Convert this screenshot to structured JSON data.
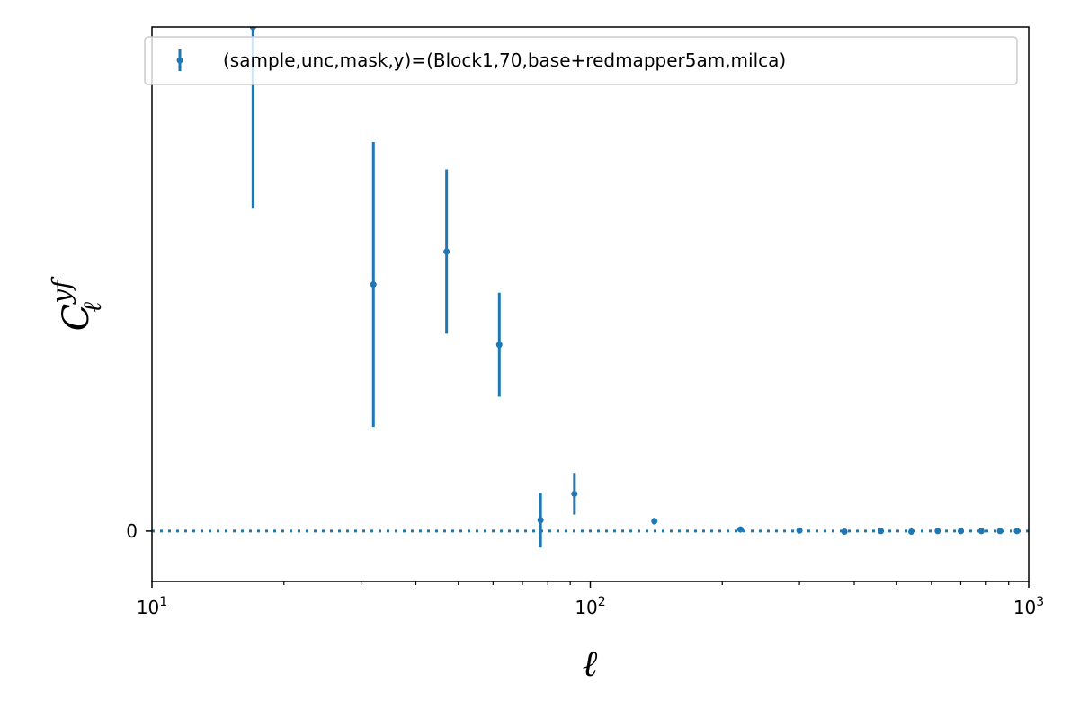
{
  "chart_data": {
    "type": "scatter",
    "title": "",
    "xlabel": "ℓ",
    "ylabel": {
      "base": "C",
      "sub": "ℓ",
      "sup": "yf"
    },
    "xscale": "log",
    "xlim": [
      10,
      1000
    ],
    "ylim": [
      -0.092,
      0.92
    ],
    "x_ticks": [
      {
        "value": 10,
        "base": "10",
        "exp": "1"
      },
      {
        "value": 100,
        "base": "10",
        "exp": "2"
      },
      {
        "value": 1000,
        "base": "10",
        "exp": "3"
      }
    ],
    "y_ticks": [
      {
        "value": 0,
        "label": "0"
      }
    ],
    "reference_line": {
      "y": 0,
      "style": "dotted",
      "color": "#1f77b4"
    },
    "grid": false,
    "legend": {
      "position": "top-right"
    },
    "series": [
      {
        "name": "(sample,unc,mask,y)=(Block1,70,base+redmapper5am,milca)",
        "color": "#1f77b4",
        "points": [
          {
            "x": 17,
            "y": 0.92,
            "yerr": 0.33
          },
          {
            "x": 32,
            "y": 0.45,
            "yerr": 0.26
          },
          {
            "x": 47,
            "y": 0.51,
            "yerr": 0.15
          },
          {
            "x": 62,
            "y": 0.34,
            "yerr": 0.095
          },
          {
            "x": 77,
            "y": 0.02,
            "yerr": 0.05
          },
          {
            "x": 92,
            "y": 0.068,
            "yerr": 0.038
          },
          {
            "x": 140,
            "y": 0.018,
            "yerr": 0.006
          },
          {
            "x": 220,
            "y": 0.003,
            "yerr": 0.0015
          },
          {
            "x": 300,
            "y": 0.001,
            "yerr": 0.0008
          },
          {
            "x": 380,
            "y": -0.001,
            "yerr": 0.0006
          },
          {
            "x": 460,
            "y": 0.0,
            "yerr": 0.0005
          },
          {
            "x": 540,
            "y": -0.001,
            "yerr": 0.0005
          },
          {
            "x": 620,
            "y": 0.0,
            "yerr": 0.0004
          },
          {
            "x": 700,
            "y": 0.0,
            "yerr": 0.0004
          },
          {
            "x": 780,
            "y": 0.0,
            "yerr": 0.0004
          },
          {
            "x": 860,
            "y": 0.0,
            "yerr": 0.0004
          },
          {
            "x": 940,
            "y": 0.0,
            "yerr": 0.0004
          }
        ]
      }
    ]
  }
}
